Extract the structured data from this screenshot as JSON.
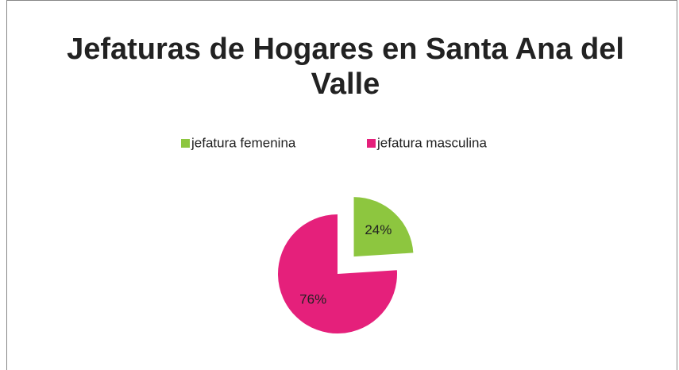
{
  "chart_data": {
    "type": "pie",
    "title": "Jefaturas de Hogares en Santa Ana del Valle",
    "categories": [
      "jefatura femenina",
      "jefatura masculina"
    ],
    "values": [
      24,
      76
    ],
    "value_labels": [
      "24%",
      "76%"
    ],
    "colors": [
      "#8dc63f",
      "#e5207b"
    ],
    "legend": "top"
  }
}
